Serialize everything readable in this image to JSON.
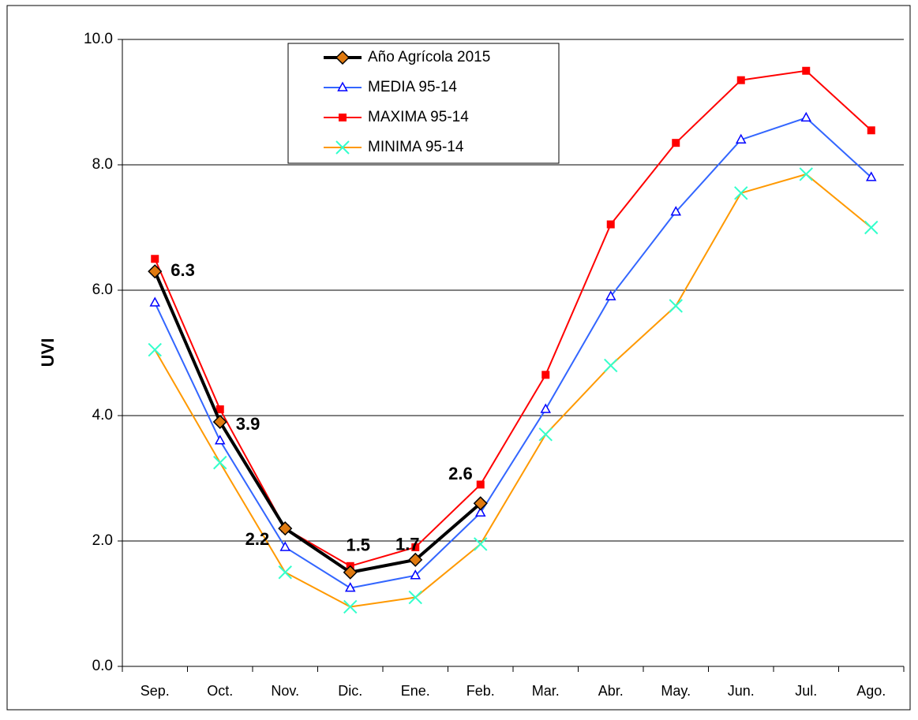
{
  "chart_data": {
    "type": "line",
    "y_label": "UVI",
    "categories": [
      "Sep.",
      "Oct.",
      "Nov.",
      "Dic.",
      "Ene.",
      "Feb.",
      "Mar.",
      "Abr.",
      "May.",
      "Jun.",
      "Jul.",
      "Ago."
    ],
    "series": [
      {
        "name": "Año  Agrícola 2015",
        "color": "#000000",
        "marker_color": "#e07a10",
        "marker": "diamond",
        "width": 4,
        "data_labels": true,
        "values": [
          6.3,
          3.9,
          2.2,
          1.5,
          1.7,
          2.6,
          null,
          null,
          null,
          null,
          null,
          null
        ]
      },
      {
        "name": "MEDIA 95-14",
        "color": "#3366ff",
        "marker_color": "#0000ff",
        "marker": "triangle",
        "width": 2,
        "values": [
          5.8,
          3.6,
          1.9,
          1.25,
          1.45,
          2.45,
          4.1,
          5.9,
          7.25,
          8.4,
          8.75,
          7.8
        ]
      },
      {
        "name": "MAXIMA 95-14",
        "color": "#ff0000",
        "marker_color": "#ff0000",
        "marker": "square",
        "width": 2,
        "values": [
          6.5,
          4.1,
          2.2,
          1.6,
          1.9,
          2.9,
          4.65,
          7.05,
          8.35,
          9.35,
          9.5,
          8.55
        ]
      },
      {
        "name": "MINIMA 95-14",
        "color": "#ff9900",
        "marker_color": "#33ffcc",
        "marker": "x",
        "width": 2,
        "values": [
          5.05,
          3.25,
          1.5,
          0.95,
          1.1,
          1.95,
          3.7,
          4.8,
          5.75,
          7.55,
          7.85,
          7.0
        ]
      }
    ],
    "ylim": [
      0,
      10
    ],
    "yticks": [
      {
        "value": 0,
        "label": "0.0"
      },
      {
        "value": 2,
        "label": "2.0"
      },
      {
        "value": 4,
        "label": "4.0"
      },
      {
        "value": 6,
        "label": "6.0"
      },
      {
        "value": 8,
        "label": "8.0"
      },
      {
        "value": 10,
        "label": "10.0"
      }
    ],
    "grid": true
  }
}
